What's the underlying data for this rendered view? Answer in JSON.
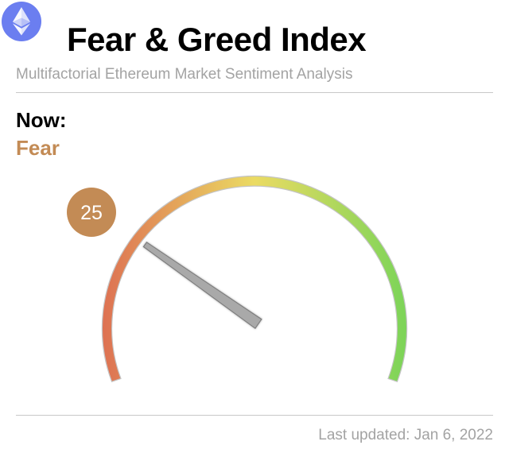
{
  "header": {
    "title": "Fear & Greed Index",
    "subtitle": "Multifactorial Ethereum Market Sentiment Analysis",
    "logo_icon": "ethereum-logo-icon"
  },
  "current": {
    "now_label": "Now:",
    "classification": "Fear",
    "value": 25,
    "value_text": "25",
    "scale_min": 0,
    "scale_max": 100
  },
  "footer": {
    "last_updated": "Last updated: Jan 6, 2022"
  },
  "colors": {
    "fear": "#c38b55",
    "extreme_fear": "#dd6f52",
    "neutral": "#ebdb63",
    "greed": "#79d458",
    "needle": "#a9a9a9"
  }
}
